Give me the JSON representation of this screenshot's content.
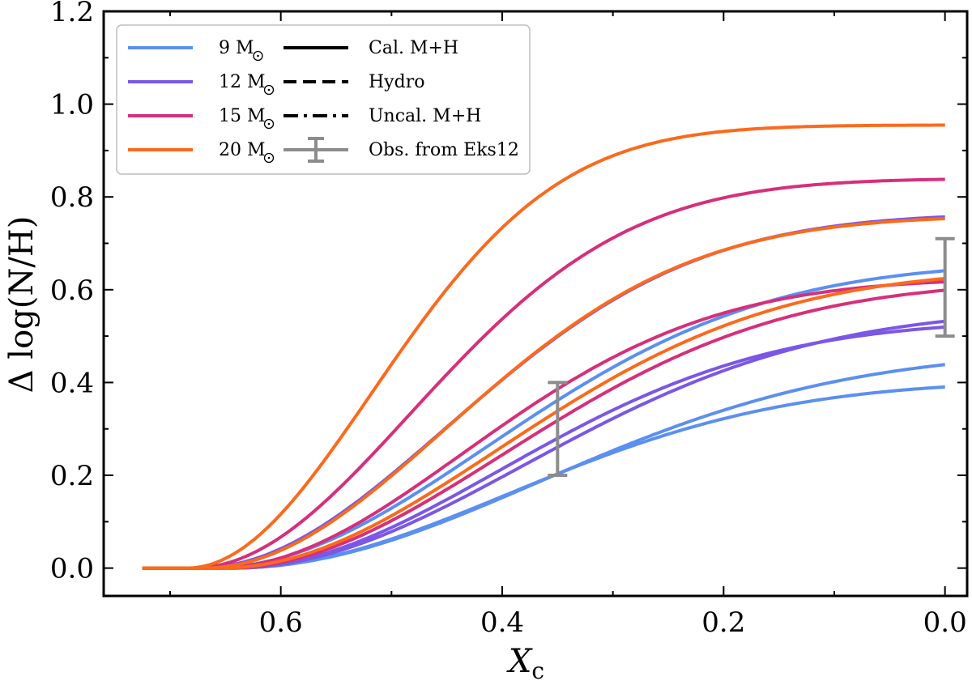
{
  "chart_data": {
    "type": "line",
    "xlabel_main": "X",
    "xlabel_sub": "c",
    "ylabel": "Δ log(N/H)",
    "xlim": [
      0.76,
      -0.02
    ],
    "ylim": [
      -0.06,
      1.2
    ],
    "x_inverted": true,
    "xticks": [
      0.6,
      0.4,
      0.2,
      0.0
    ],
    "xtick_labels": [
      "0.6",
      "0.4",
      "0.2",
      "0.0"
    ],
    "yticks": [
      0.0,
      0.2,
      0.4,
      0.6,
      0.8,
      1.0,
      1.2
    ],
    "ytick_labels": [
      "0.0",
      "0.2",
      "0.4",
      "0.6",
      "0.8",
      "1.0",
      "1.2"
    ],
    "grid": false,
    "legend_position": "top-left",
    "masses": [
      {
        "key": "m9",
        "label": "9",
        "unit": "M",
        "color": "#5b8ff0"
      },
      {
        "key": "m12",
        "label": "12",
        "unit": "M",
        "color": "#7b57e6"
      },
      {
        "key": "m15",
        "label": "15",
        "unit": "M",
        "color": "#d62f7c"
      },
      {
        "key": "m20",
        "label": "20",
        "unit": "M",
        "color": "#fb6a1c"
      }
    ],
    "styles": [
      {
        "key": "cal",
        "label": "Cal. M+H",
        "dash": "none"
      },
      {
        "key": "hydro",
        "label": "Hydro",
        "dash": "dash"
      },
      {
        "key": "uncal",
        "label": "Uncal. M+H",
        "dash": "dashdot"
      }
    ],
    "obs_label": "Obs. from Eks12",
    "obs_color": "#8c8c8c",
    "observations": [
      {
        "x": 0.35,
        "y_low": 0.2,
        "y_high": 0.4
      },
      {
        "x": 0.0,
        "y_low": 0.5,
        "y_high": 0.71
      }
    ],
    "x_start": 0.725,
    "series": [
      {
        "mass": "m9",
        "style": "cal",
        "x0": 0.645,
        "ymax": 0.405,
        "k": 8.0
      },
      {
        "mass": "m9",
        "style": "hydro",
        "x0": 0.645,
        "ymax": 0.47,
        "k": 6.5
      },
      {
        "mass": "m9",
        "style": "uncal",
        "x0": 0.665,
        "ymax": 0.66,
        "k": 8.0
      },
      {
        "mass": "m12",
        "style": "cal",
        "x0": 0.645,
        "ymax": 0.535,
        "k": 8.5
      },
      {
        "mass": "m12",
        "style": "hydro",
        "x0": 0.645,
        "ymax": 0.56,
        "k": 7.2
      },
      {
        "mass": "m12",
        "style": "uncal",
        "x0": 0.675,
        "ymax": 0.765,
        "k": 10.0
      },
      {
        "mass": "m15",
        "style": "cal",
        "x0": 0.66,
        "ymax": 0.625,
        "k": 10.0
      },
      {
        "mass": "m15",
        "style": "hydro",
        "x0": 0.65,
        "ymax": 0.62,
        "k": 8.0
      },
      {
        "mass": "m15",
        "style": "uncal",
        "x0": 0.68,
        "ymax": 0.84,
        "k": 13.0
      },
      {
        "mass": "m20",
        "style": "cal",
        "x0": 0.67,
        "ymax": 0.76,
        "k": 10.5
      },
      {
        "mass": "m20",
        "style": "hydro",
        "x0": 0.655,
        "ymax": 0.645,
        "k": 8.0
      },
      {
        "mass": "m20",
        "style": "uncal",
        "x0": 0.685,
        "ymax": 0.955,
        "k": 18.0
      }
    ]
  }
}
